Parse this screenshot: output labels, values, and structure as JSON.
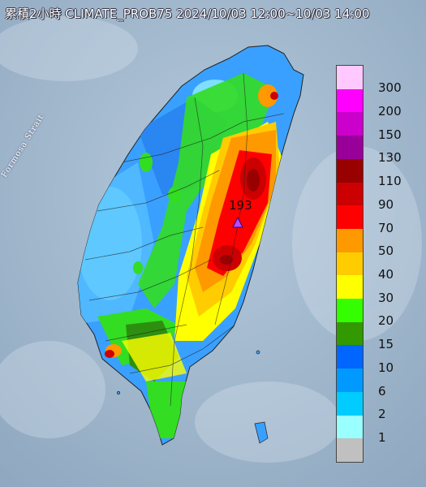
{
  "title": "累積2小時 CLIMATE_PROB75 2024/10/03 12:00~10/03 14:00",
  "strait_label": "Formosa Strait",
  "max_marker": {
    "value": "193",
    "marker_color": "#b44cff"
  },
  "legend": [
    {
      "label": "300",
      "color": "#ffc8ff"
    },
    {
      "label": "200",
      "color": "#ff00ff"
    },
    {
      "label": "150",
      "color": "#cc00cc"
    },
    {
      "label": "130",
      "color": "#990099"
    },
    {
      "label": "110",
      "color": "#990000"
    },
    {
      "label": "90",
      "color": "#cc0000"
    },
    {
      "label": "70",
      "color": "#ff0000"
    },
    {
      "label": "50",
      "color": "#ff9900"
    },
    {
      "label": "40",
      "color": "#ffcc00"
    },
    {
      "label": "30",
      "color": "#ffff00"
    },
    {
      "label": "20",
      "color": "#33ff00"
    },
    {
      "label": "15",
      "color": "#339900"
    },
    {
      "label": "10",
      "color": "#0066ff"
    },
    {
      "label": "6",
      "color": "#0099ff"
    },
    {
      "label": "2",
      "color": "#00ccff"
    },
    {
      "label": "1",
      "color": "#99ffff"
    },
    {
      "label": "",
      "color": "#c0c0c0"
    }
  ]
}
